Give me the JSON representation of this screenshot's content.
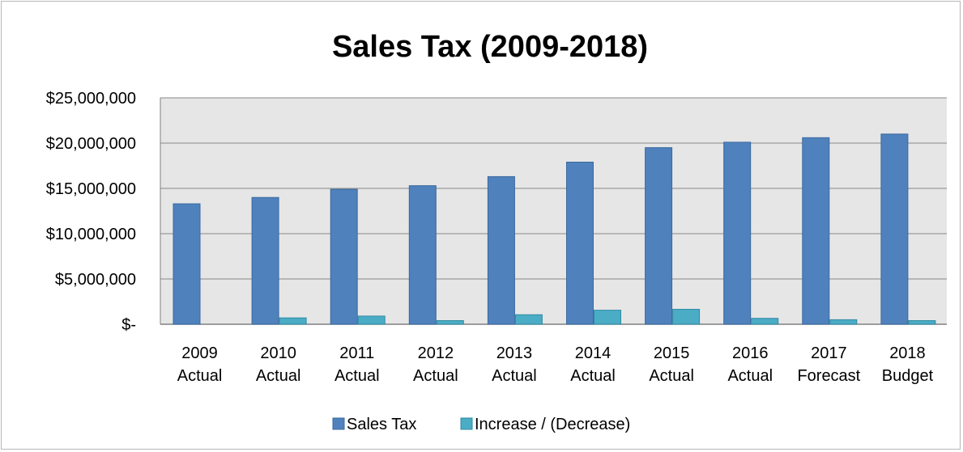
{
  "chart_data": {
    "type": "bar",
    "title": "Sales Tax (2009-2018)",
    "xlabel": "",
    "ylabel": "",
    "ylim": [
      0,
      25000000
    ],
    "y_ticks": [
      {
        "value": 0,
        "label": "$-"
      },
      {
        "value": 5000000,
        "label": "$5,000,000"
      },
      {
        "value": 10000000,
        "label": "$10,000,000"
      },
      {
        "value": 15000000,
        "label": "$15,000,000"
      },
      {
        "value": 20000000,
        "label": "$20,000,000"
      },
      {
        "value": 25000000,
        "label": "$25,000,000"
      }
    ],
    "categories": [
      [
        "2009",
        "Actual"
      ],
      [
        "2010",
        "Actual"
      ],
      [
        "2011",
        "Actual"
      ],
      [
        "2012",
        "Actual"
      ],
      [
        "2013",
        "Actual"
      ],
      [
        "2014",
        "Actual"
      ],
      [
        "2015",
        "Actual"
      ],
      [
        "2016",
        "Actual"
      ],
      [
        "2017",
        "Forecast"
      ],
      [
        "2018",
        "Budget"
      ]
    ],
    "series": [
      {
        "name": "Sales Tax",
        "color": "#4f81bd",
        "values": [
          13300000,
          14000000,
          14900000,
          15300000,
          16300000,
          17900000,
          19500000,
          20100000,
          20600000,
          21000000
        ]
      },
      {
        "name": "Increase / (Decrease)",
        "color": "#4bacc6",
        "values": [
          0,
          700000,
          900000,
          400000,
          1050000,
          1550000,
          1650000,
          650000,
          500000,
          400000
        ]
      }
    ],
    "grid": true,
    "plot_background": "#e6e6e6",
    "legend_position": "bottom"
  }
}
